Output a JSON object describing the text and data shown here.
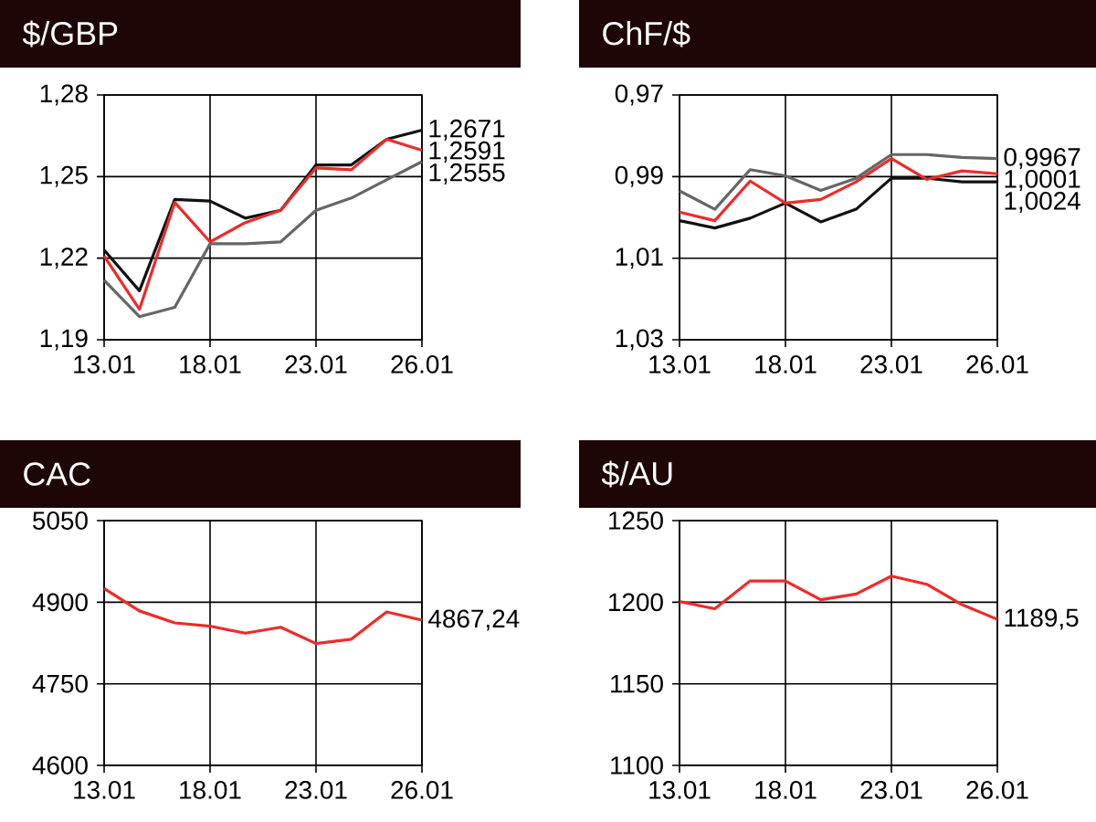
{
  "chart_data": [
    {
      "type": "line",
      "title": "$/GBP",
      "categories": [
        "13.01",
        null,
        null,
        "18.01",
        null,
        null,
        "23.01",
        null,
        null,
        "26.01"
      ],
      "ylim": [
        1.19,
        1.28
      ],
      "yticks": [
        {
          "value": 1.19,
          "label": "1,19"
        },
        {
          "value": 1.22,
          "label": "1,22"
        },
        {
          "value": 1.25,
          "label": "1,25"
        },
        {
          "value": 1.28,
          "label": "1,28"
        }
      ],
      "grid": true,
      "series": [
        {
          "color": "#111111",
          "values": [
            1.223,
            1.208,
            1.2416,
            1.241,
            1.2347,
            1.2376,
            1.2543,
            1.2543,
            1.2637,
            1.2671
          ]
        },
        {
          "color": "#ee2a2a",
          "values": [
            1.2208,
            1.2012,
            1.2405,
            1.226,
            1.2331,
            1.2376,
            1.2532,
            1.2525,
            1.2637,
            1.2597
          ]
        },
        {
          "color": "#666666",
          "values": [
            1.2119,
            1.1985,
            1.2019,
            1.2253,
            1.2253,
            1.226,
            1.2376,
            1.2421,
            1.2488,
            1.2555
          ]
        }
      ],
      "annotations": [
        "1,2671",
        "1,2591",
        "1,2555"
      ]
    },
    {
      "type": "line",
      "title": "ChF/$",
      "categories": [
        "13.01",
        null,
        null,
        "18.01",
        null,
        null,
        "23.01",
        null,
        null,
        "26.01"
      ],
      "ylim": [
        1.03,
        0.97
      ],
      "yticks": [
        {
          "value": 0.97,
          "label": "0,97"
        },
        {
          "value": 0.99,
          "label": "0,99"
        },
        {
          "value": 1.01,
          "label": "1,01"
        },
        {
          "value": 1.03,
          "label": "1,03"
        }
      ],
      "grid": true,
      "series": [
        {
          "color": "#111111",
          "values": [
            1.0008,
            1.0026,
            1.0002,
            0.9965,
            1.0011,
            0.998,
            0.9904,
            0.9904,
            0.9913,
            0.9913
          ]
        },
        {
          "color": "#ee2a2a",
          "values": [
            0.9987,
            1.0008,
            0.9911,
            0.9965,
            0.9956,
            0.9913,
            0.9856,
            0.9907,
            0.9886,
            0.9893
          ]
        },
        {
          "color": "#666666",
          "values": [
            0.9935,
            0.998,
            0.9883,
            0.9898,
            0.9934,
            0.9904,
            0.9846,
            0.9846,
            0.9853,
            0.9856
          ]
        }
      ],
      "annotations": [
        "1,0024",
        "1,0001",
        "0,9967"
      ]
    },
    {
      "type": "line",
      "title": "CAC",
      "categories": [
        "13.01",
        null,
        null,
        "18.01",
        null,
        null,
        "23.01",
        null,
        null,
        "26.01"
      ],
      "ylim": [
        4600,
        5050
      ],
      "yticks": [
        4600,
        4750,
        4900,
        5050
      ],
      "grid": true,
      "color": "#ee2a2a",
      "values": [
        4925,
        4884,
        4862,
        4856,
        4843,
        4854,
        4824,
        4832,
        4882,
        4867
      ],
      "annotations": [
        "4867,24"
      ]
    },
    {
      "type": "line",
      "title": "$/AU",
      "categories": [
        "13.01",
        null,
        null,
        "18.01",
        null,
        null,
        "23.01",
        null,
        null,
        "26.01"
      ],
      "ylim": [
        1100,
        1250
      ],
      "yticks": [
        1100,
        1150,
        1200,
        1250
      ],
      "grid": true,
      "color": "#ee2a2a",
      "values": [
        1200.4,
        1196,
        1213,
        1213,
        1201.5,
        1205,
        1216,
        1211,
        1198.5,
        1189.5
      ],
      "annotations": [
        "1189,5"
      ]
    }
  ]
}
